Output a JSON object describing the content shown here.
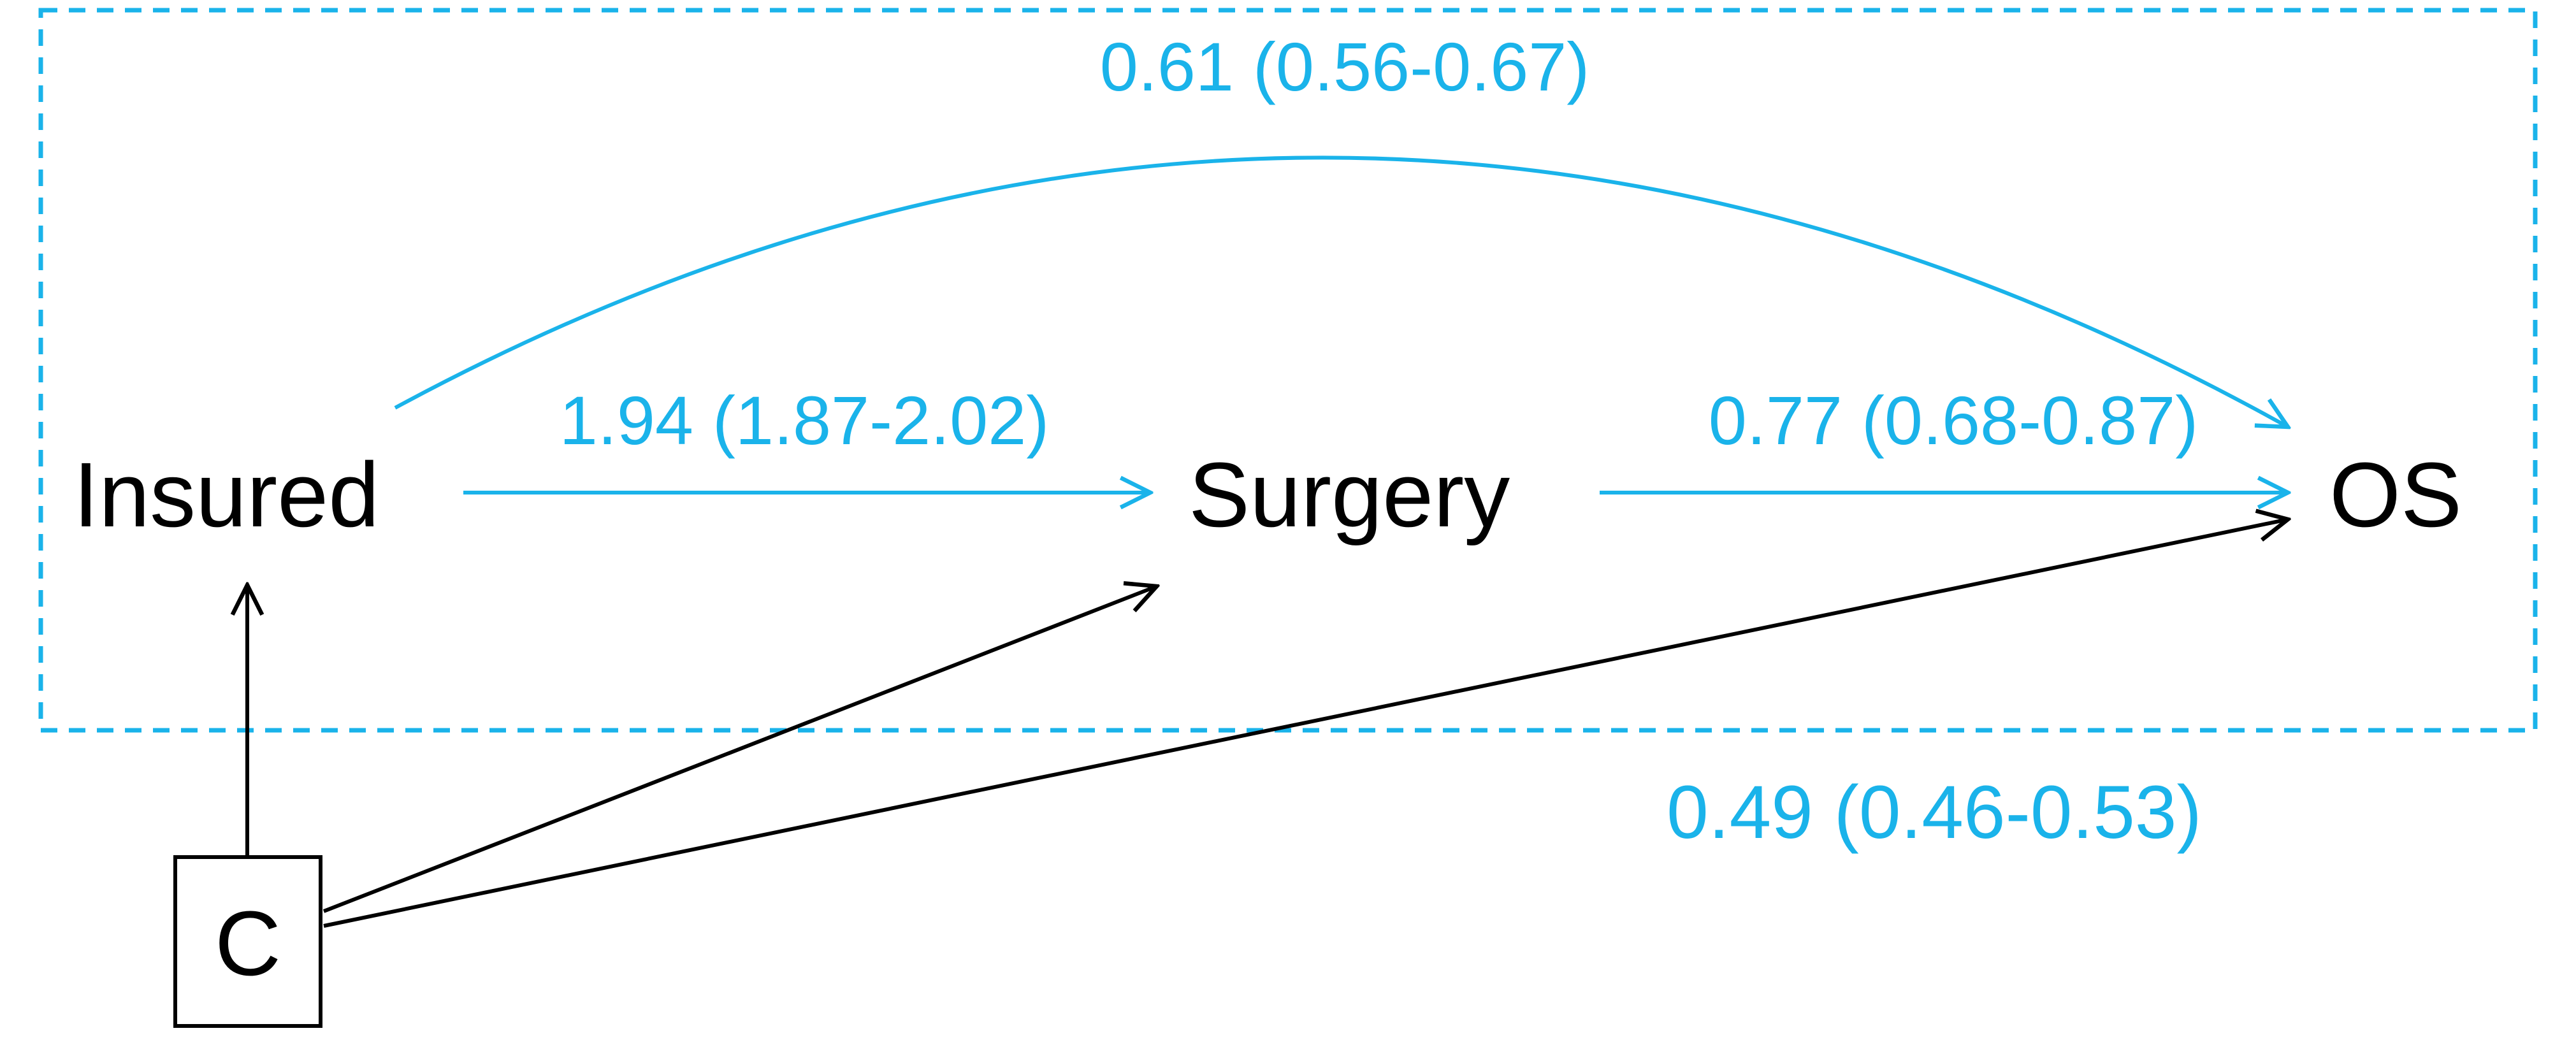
{
  "nodes": {
    "insured": "Insured",
    "surgery": "Surgery",
    "os": "OS",
    "confounder": "C"
  },
  "edges": {
    "insured_to_os": "0.61 (0.56-0.67)",
    "insured_to_surgery": "1.94 (1.87-2.02)",
    "surgery_to_os": "0.77 (0.68-0.87)",
    "total_effect": "0.49 (0.46-0.53)"
  },
  "colors": {
    "accent": "#1ab3ea",
    "ink": "#000000",
    "background": "#ffffff"
  }
}
